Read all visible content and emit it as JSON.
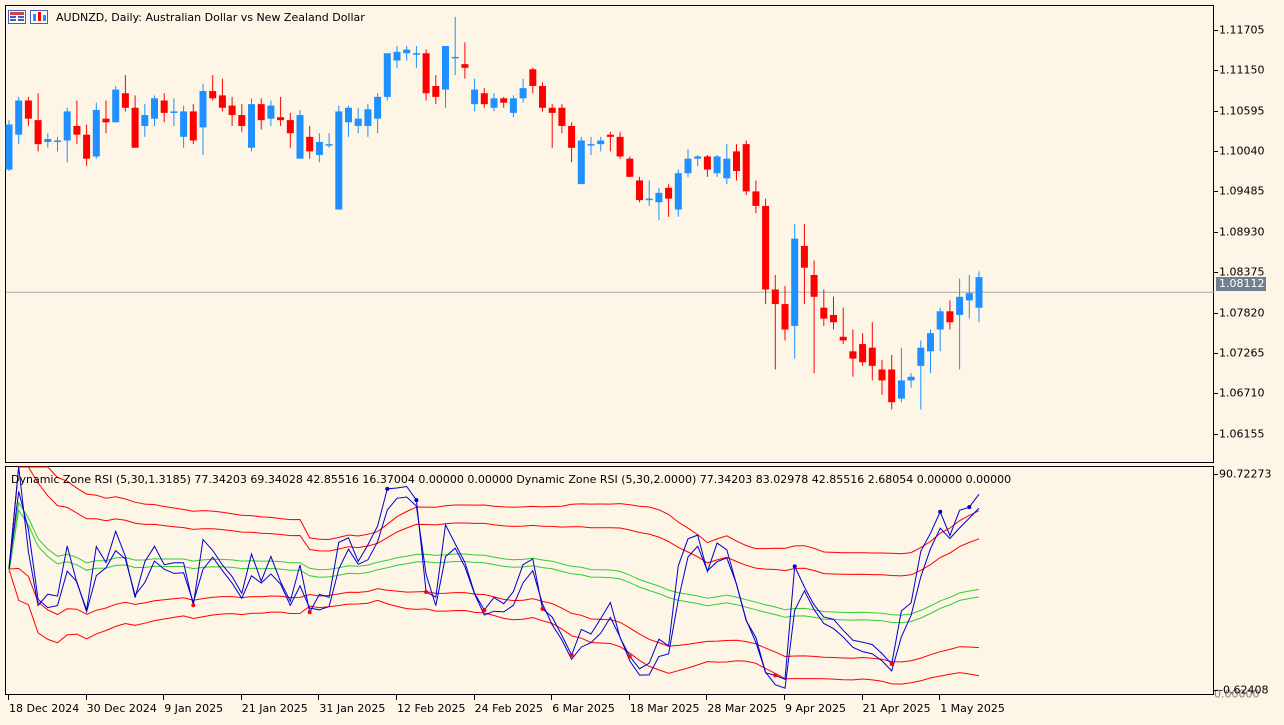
{
  "chart": {
    "symbol_title": "AUDNZD, Daily:  Australian Dollar vs New Zealand Dollar",
    "current_price": "1.08112",
    "colors": {
      "bull": "#1e90ff",
      "bear": "#ff0000",
      "background": "#fdf5e6",
      "price_line": "#a9a9a9"
    }
  },
  "indicator": {
    "title": "Dynamic Zone RSI (5,30,1.3185) 77.34203 69.34028 42.85516 16.37004 0.00000 0.00000 Dynamic Zone RSI (5,30,2.0000) 77.34203 83.02978 42.85516 2.68054 0.00000 0.00000",
    "scale_top": "90.72273",
    "scale_bottom": "-0.62408",
    "scale_mid": "0.00000",
    "colors": {
      "rsi": "#0000cd",
      "band": "#ff0000",
      "mid": "#32cd32"
    }
  },
  "price_axis": [
    "1.11705",
    "1.11150",
    "1.10595",
    "1.10040",
    "1.09485",
    "1.08930",
    "1.08375",
    "1.07820",
    "1.07265",
    "1.06710",
    "1.06155"
  ],
  "time_axis": [
    "18 Dec 2024",
    "30 Dec 2024",
    "9 Jan 2025",
    "21 Jan 2025",
    "31 Jan 2025",
    "12 Feb 2025",
    "24 Feb 2025",
    "6 Mar 2025",
    "18 Mar 2025",
    "28 Mar 2025",
    "9 Apr 2025",
    "21 Apr 2025",
    "1 May 2025"
  ],
  "chart_data": [
    {
      "type": "candlestick",
      "title": "AUDNZD, Daily:  Australian Dollar vs New Zealand Dollar",
      "ylim": [
        1.0575,
        1.1205
      ],
      "candles": [
        [
          1.098,
          1.1048,
          1.0978,
          1.1042
        ],
        [
          1.1028,
          1.108,
          1.1015,
          1.1075
        ],
        [
          1.1075,
          1.108,
          1.104,
          1.105
        ],
        [
          1.1048,
          1.1085,
          1.1005,
          1.1015
        ],
        [
          1.1018,
          1.103,
          1.101,
          1.1022
        ],
        [
          1.102,
          1.1025,
          1.1005,
          1.102
        ],
        [
          1.102,
          1.1065,
          1.099,
          1.106
        ],
        [
          1.104,
          1.1075,
          1.1015,
          1.1028
        ],
        [
          1.1028,
          1.1042,
          1.0985,
          1.0995
        ],
        [
          1.0998,
          1.1072,
          1.0995,
          1.1062
        ],
        [
          1.105,
          1.1075,
          1.103,
          1.1045
        ],
        [
          1.1045,
          1.1095,
          1.1045,
          1.109
        ],
        [
          1.1085,
          1.111,
          1.106,
          1.1065
        ],
        [
          1.1065,
          1.1082,
          1.101,
          1.101
        ],
        [
          1.104,
          1.107,
          1.1025,
          1.1055
        ],
        [
          1.105,
          1.1082,
          1.104,
          1.1078
        ],
        [
          1.1075,
          1.1085,
          1.1045,
          1.1058
        ],
        [
          1.1058,
          1.1078,
          1.104,
          1.106
        ],
        [
          1.1025,
          1.1068,
          1.101,
          1.106
        ],
        [
          1.106,
          1.107,
          1.1015,
          1.102
        ],
        [
          1.1038,
          1.1098,
          1.1,
          1.1088
        ],
        [
          1.1088,
          1.111,
          1.1075,
          1.1078
        ],
        [
          1.1082,
          1.1105,
          1.106,
          1.1065
        ],
        [
          1.1068,
          1.108,
          1.104,
          1.1055
        ],
        [
          1.1055,
          1.107,
          1.1032,
          1.104
        ],
        [
          1.101,
          1.1078,
          1.1005,
          1.107
        ],
        [
          1.107,
          1.1078,
          1.1035,
          1.1048
        ],
        [
          1.105,
          1.1075,
          1.104,
          1.1068
        ],
        [
          1.1052,
          1.108,
          1.104,
          1.1048
        ],
        [
          1.1048,
          1.1058,
          1.101,
          1.103
        ],
        [
          1.0995,
          1.1062,
          1.0995,
          1.1055
        ],
        [
          1.1025,
          1.104,
          1.0995,
          1.1005
        ],
        [
          1.1,
          1.103,
          1.099,
          1.1018
        ],
        [
          1.1015,
          1.103,
          1.101,
          1.1015
        ],
        [
          1.0925,
          1.1068,
          1.0925,
          1.106
        ],
        [
          1.1045,
          1.1068,
          1.1025,
          1.1065
        ],
        [
          1.104,
          1.1065,
          1.103,
          1.105
        ],
        [
          1.104,
          1.107,
          1.1025,
          1.1063
        ],
        [
          1.105,
          1.1085,
          1.103,
          1.108
        ],
        [
          1.108,
          1.114,
          1.1075,
          1.114
        ],
        [
          1.113,
          1.115,
          1.112,
          1.1142
        ],
        [
          1.114,
          1.115,
          1.113,
          1.1145
        ],
        [
          1.114,
          1.115,
          1.112,
          1.114
        ],
        [
          1.114,
          1.1145,
          1.1075,
          1.1085
        ],
        [
          1.1095,
          1.111,
          1.107,
          1.108
        ],
        [
          1.109,
          1.115,
          1.1065,
          1.115
        ],
        [
          1.1135,
          1.119,
          1.111,
          1.1135
        ],
        [
          1.1125,
          1.1155,
          1.1105,
          1.112
        ],
        [
          1.107,
          1.1105,
          1.106,
          1.109
        ],
        [
          1.1085,
          1.1092,
          1.1065,
          1.107
        ],
        [
          1.1065,
          1.1085,
          1.106,
          1.1078
        ],
        [
          1.1078,
          1.108,
          1.1065,
          1.1072
        ],
        [
          1.1058,
          1.1082,
          1.1052,
          1.1078
        ],
        [
          1.1078,
          1.1105,
          1.1072,
          1.1092
        ],
        [
          1.1118,
          1.112,
          1.1085,
          1.1095
        ],
        [
          1.1095,
          1.11,
          1.106,
          1.1065
        ],
        [
          1.1065,
          1.107,
          1.101,
          1.1058
        ],
        [
          1.1065,
          1.107,
          1.103,
          1.104
        ],
        [
          1.104,
          1.1045,
          1.099,
          1.101
        ],
        [
          1.096,
          1.1025,
          1.096,
          1.102
        ],
        [
          1.1015,
          1.1025,
          1.1,
          1.1015
        ],
        [
          1.1015,
          1.1025,
          1.1005,
          1.102
        ],
        [
          1.1028,
          1.1032,
          1.1005,
          1.1025
        ],
        [
          1.1025,
          1.1032,
          1.0995,
          1.0998
        ],
        [
          1.0995,
          1.0998,
          1.097,
          1.097
        ],
        [
          1.0965,
          1.097,
          1.0935,
          1.0938
        ],
        [
          1.094,
          1.0965,
          1.093,
          1.094
        ],
        [
          1.0935,
          1.0955,
          1.091,
          1.0948
        ],
        [
          1.0955,
          1.096,
          1.0915,
          1.094
        ],
        [
          1.0925,
          1.098,
          1.0915,
          1.0975
        ],
        [
          1.0975,
          1.1008,
          1.097,
          1.0995
        ],
        [
          1.0995,
          1.1,
          1.0985,
          1.0998
        ],
        [
          1.0998,
          1.1,
          1.097,
          1.098
        ],
        [
          1.0975,
          1.1,
          1.097,
          1.0998
        ],
        [
          1.0968,
          1.1015,
          1.096,
          1.0995
        ],
        [
          1.1005,
          1.1015,
          1.0965,
          1.0978
        ],
        [
          1.1015,
          1.102,
          1.0945,
          1.095
        ],
        [
          1.095,
          1.0965,
          1.092,
          1.093
        ],
        [
          1.093,
          1.094,
          1.0795,
          1.0815
        ],
        [
          1.0815,
          1.0835,
          1.0705,
          1.0795
        ],
        [
          1.0795,
          1.082,
          1.0745,
          1.076
        ],
        [
          1.0765,
          1.0905,
          1.072,
          1.0885
        ],
        [
          1.0875,
          1.0905,
          1.0795,
          1.0845
        ],
        [
          1.0835,
          1.0855,
          1.07,
          1.0805
        ],
        [
          1.079,
          1.0815,
          1.0765,
          1.0775
        ],
        [
          1.078,
          1.0805,
          1.076,
          1.077
        ],
        [
          1.075,
          1.079,
          1.074,
          1.0745
        ],
        [
          1.073,
          1.076,
          1.0695,
          1.072
        ],
        [
          1.074,
          1.0755,
          1.071,
          1.0715
        ],
        [
          1.0735,
          1.077,
          1.069,
          1.071
        ],
        [
          1.0705,
          1.0718,
          1.067,
          1.069
        ],
        [
          1.0705,
          1.0725,
          1.065,
          1.066
        ],
        [
          1.0665,
          1.0735,
          1.066,
          1.069
        ],
        [
          1.069,
          1.07,
          1.068,
          1.0695
        ],
        [
          1.071,
          1.0745,
          1.065,
          1.0735
        ],
        [
          1.073,
          1.076,
          1.07,
          1.0755
        ],
        [
          1.076,
          1.079,
          1.073,
          1.0785
        ],
        [
          1.0785,
          1.08,
          1.076,
          1.077
        ],
        [
          1.078,
          1.083,
          1.0705,
          1.0805
        ],
        [
          1.08,
          1.0835,
          1.0775,
          1.081
        ],
        [
          1.079,
          1.084,
          1.077,
          1.0832
        ]
      ]
    },
    {
      "type": "line",
      "title": "Dynamic Zone RSI (5,30,1.3185) 77.34203 69.34028 42.85516 16.37004 0.00000 0.00000 Dynamic Zone RSI (5,30,2.0000) 77.34203 83.02978 42.85516 2.68054 0.00000 0.00000",
      "ylim": [
        -0.62408,
        90.72273
      ],
      "last_values": [
        77.34203,
        69.34028,
        42.85516,
        16.37004,
        83.02978,
        2.68054
      ]
    }
  ]
}
